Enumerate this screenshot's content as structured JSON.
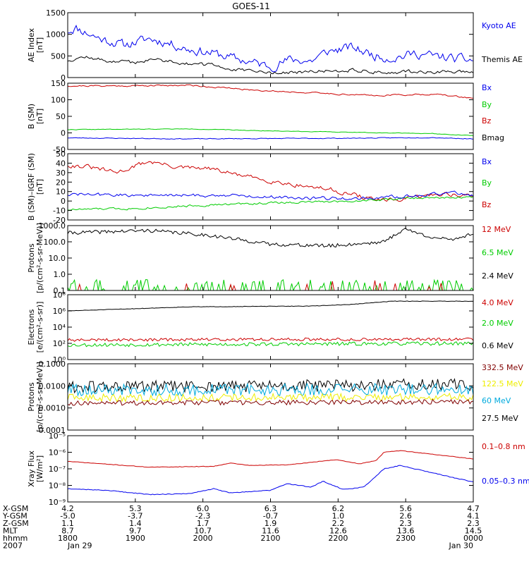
{
  "title": "GOES-11",
  "colors": {
    "black": "#000000",
    "blue": "#0000ee",
    "green": "#00cc00",
    "red": "#cc0000",
    "darkred": "#800000",
    "yellow": "#eeee00",
    "cyan": "#00aadd"
  },
  "chart_data": [
    {
      "type": "line",
      "ylabel_lines": [
        "AE Index",
        "[nT]"
      ],
      "ylim": [
        0,
        1500
      ],
      "yticks": [
        {
          "v": 0,
          "t": "0"
        },
        {
          "v": 500,
          "t": "500"
        },
        {
          "v": 1000,
          "t": "1000"
        },
        {
          "v": 1500,
          "t": "1500"
        }
      ],
      "series": [
        {
          "name": "Kyoto AE",
          "color": "#0000ee",
          "gen": "ae_kyoto"
        },
        {
          "name": "Themis AE",
          "color": "#000000",
          "gen": "ae_themis"
        }
      ]
    },
    {
      "type": "line",
      "ylabel_lines": [
        "B (SM)",
        "[nT]"
      ],
      "ylim": [
        -50,
        150
      ],
      "yticks": [
        {
          "v": -50,
          "t": "-50"
        },
        {
          "v": 0,
          "t": "0"
        },
        {
          "v": 50,
          "t": "50"
        },
        {
          "v": 100,
          "t": "100"
        },
        {
          "v": 150,
          "t": "150"
        }
      ],
      "series": [
        {
          "name": "Bx",
          "color": "#0000ee",
          "gen": "b_bx"
        },
        {
          "name": "By",
          "color": "#00cc00",
          "gen": "b_by"
        },
        {
          "name": "Bz",
          "color": "#cc0000",
          "gen": "b_bz"
        },
        {
          "name": "Bmag",
          "color": "#000000",
          "gen": "b_bz"
        }
      ]
    },
    {
      "type": "line",
      "ylabel_lines": [
        "B (SM)–IGRF (SM)",
        "[nT]"
      ],
      "ylim": [
        -20,
        50
      ],
      "yticks": [
        {
          "v": -20,
          "t": "-20"
        },
        {
          "v": -10,
          "t": "-10"
        },
        {
          "v": 0,
          "t": "0"
        },
        {
          "v": 10,
          "t": "10"
        },
        {
          "v": 20,
          "t": "20"
        },
        {
          "v": 30,
          "t": "30"
        },
        {
          "v": 40,
          "t": "40"
        },
        {
          "v": 50,
          "t": "50"
        }
      ],
      "series": [
        {
          "name": "Bx",
          "color": "#0000ee",
          "gen": "d_bx"
        },
        {
          "name": "By",
          "color": "#00cc00",
          "gen": "d_by"
        },
        {
          "name": "Bz",
          "color": "#cc0000",
          "gen": "d_bz"
        }
      ]
    },
    {
      "type": "line",
      "log": true,
      "ylabel_lines": [
        "Protons",
        "[p/(cm²-s-sr-MeV)]"
      ],
      "ylim": [
        0.1,
        1000
      ],
      "yticks": [
        {
          "v": 0.1,
          "t": "0.1"
        },
        {
          "v": 1,
          "t": "1.0"
        },
        {
          "v": 10,
          "t": "10.0"
        },
        {
          "v": 100,
          "t": "100.0"
        },
        {
          "v": 1000,
          "t": "1000.0"
        }
      ],
      "series": [
        {
          "name": "12 MeV",
          "color": "#cc0000",
          "gen": "p1_12"
        },
        {
          "name": "6.5 MeV",
          "color": "#00cc00",
          "gen": "p1_65"
        },
        {
          "name": "2.4 MeV",
          "color": "#000000",
          "gen": "p1_24"
        }
      ]
    },
    {
      "type": "line",
      "log": true,
      "ylabel_lines": [
        "Electrons",
        "[e/(cm²-s-sr)]"
      ],
      "ylim": [
        1,
        100000000
      ],
      "yticks": [
        {
          "v": 1,
          "t": "10⁰"
        },
        {
          "v": 100,
          "t": "10²"
        },
        {
          "v": 10000,
          "t": "10⁴"
        },
        {
          "v": 1000000,
          "t": "10⁶"
        },
        {
          "v": 100000000,
          "t": "10⁸"
        }
      ],
      "series": [
        {
          "name": "4.0 MeV",
          "color": "#cc0000",
          "gen": "e_40"
        },
        {
          "name": "2.0 MeV",
          "color": "#00cc00",
          "gen": "e_20"
        },
        {
          "name": "0.6 MeV",
          "color": "#000000",
          "gen": "e_06"
        }
      ]
    },
    {
      "type": "line",
      "log": true,
      "ylabel_lines": [
        "Protons",
        "[p/(cm²-s-sr-MeV)]"
      ],
      "ylim": [
        0.0001,
        0.1
      ],
      "yticks": [
        {
          "v": 0.0001,
          "t": "0.0001"
        },
        {
          "v": 0.001,
          "t": "0.0010"
        },
        {
          "v": 0.01,
          "t": "0.0100"
        },
        {
          "v": 0.1,
          "t": "0.1000"
        }
      ],
      "series": [
        {
          "name": "332.5 MeV",
          "color": "#800000",
          "gen": "p2_332"
        },
        {
          "name": "122.5 MeV",
          "color": "#eeee00",
          "gen": "p2_122"
        },
        {
          "name": "60 MeV",
          "color": "#00aadd",
          "gen": "p2_60"
        },
        {
          "name": "27.5 MeV",
          "color": "#000000",
          "gen": "p2_27"
        }
      ]
    },
    {
      "type": "line",
      "log": true,
      "ylabel_lines": [
        "Xray Flux",
        "[W/m²]"
      ],
      "ylim": [
        1e-09,
        1e-05
      ],
      "yticks": [
        {
          "v": 1e-09,
          "t": "10⁻⁹"
        },
        {
          "v": 1e-08,
          "t": "10⁻⁸"
        },
        {
          "v": 1e-07,
          "t": "10⁻⁷"
        },
        {
          "v": 1e-06,
          "t": "10⁻⁶"
        },
        {
          "v": 1e-05,
          "t": "10⁻⁵"
        }
      ],
      "series": [
        {
          "name": "0.1–0.8 nm",
          "color": "#cc0000",
          "gen": "x_long"
        },
        {
          "name": "0.05–0.3 nm",
          "color": "#0000ee",
          "gen": "x_short"
        }
      ]
    }
  ],
  "x_axis": {
    "row_labels": [
      "X-GSM",
      "Y-GSM",
      "Z-GSM",
      "MLT",
      "hhmm",
      "2007"
    ],
    "columns": [
      [
        "4.2",
        "-5.0",
        "1.1",
        "8.7",
        "1800",
        "Jan 29"
      ],
      [
        "5.3",
        "-3.7",
        "1.4",
        "9.7",
        "1900",
        ""
      ],
      [
        "6.0",
        "-2.3",
        "1.7",
        "10.7",
        "2000",
        ""
      ],
      [
        "6.3",
        "-0.7",
        "1.9",
        "11.6",
        "2100",
        ""
      ],
      [
        "6.2",
        "1.0",
        "2.2",
        "12.6",
        "2200",
        ""
      ],
      [
        "5.6",
        "2.6",
        "2.3",
        "13.6",
        "2300",
        ""
      ],
      [
        "4.7",
        "4.1",
        "2.3",
        "14.5",
        "0000",
        "Jan 30"
      ]
    ]
  }
}
